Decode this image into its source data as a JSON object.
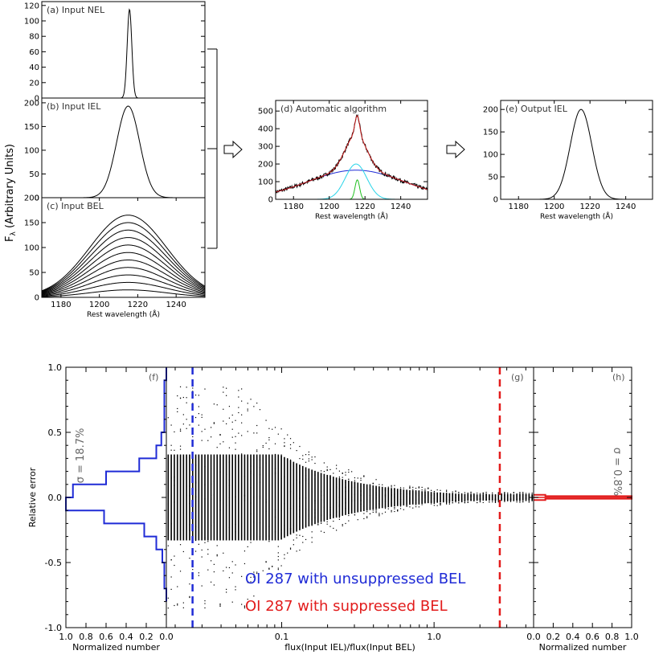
{
  "figure": {
    "ylabel_top": "F",
    "ylabel_sub": "λ",
    "ylabel_rest": " (Arbitrary Units)"
  },
  "chart_data": [
    {
      "id": "a",
      "type": "line",
      "title": "(a) Input NEL",
      "xlim": [
        1170,
        1255
      ],
      "ylim": [
        0,
        125
      ],
      "yticks": [
        0,
        20,
        40,
        60,
        80,
        100,
        120
      ],
      "xticks": [],
      "xlabel": "",
      "ylabel": "",
      "series": [
        {
          "kind": "gauss",
          "center": 1215.7,
          "sigma": 1.2,
          "amp": 115,
          "color": "#000000"
        }
      ]
    },
    {
      "id": "b",
      "type": "line",
      "title": "(b) Input IEL",
      "xlim": [
        1170,
        1255
      ],
      "ylim": [
        0,
        210
      ],
      "yticks": [
        0,
        50,
        100,
        150,
        200
      ],
      "xticks": [],
      "xlabel": "",
      "ylabel": "",
      "series": [
        {
          "kind": "gauss",
          "center": 1215,
          "sigma": 6,
          "amp": 193,
          "color": "#000000"
        }
      ]
    },
    {
      "id": "c",
      "type": "line",
      "title": "(c) Input BEL",
      "xlim": [
        1170,
        1255
      ],
      "ylim": [
        0,
        200
      ],
      "yticks": [
        0,
        50,
        100,
        150,
        200
      ],
      "xticks": [
        1180,
        1200,
        1220,
        1240
      ],
      "xlabel": "Rest wavelength (Å)",
      "ylabel": "",
      "series": [
        {
          "kind": "gaussfamily",
          "center": 1215,
          "sigma": 20,
          "amps": [
            15,
            30,
            45,
            60,
            75,
            90,
            105,
            120,
            135,
            150,
            165
          ],
          "color": "#000000"
        }
      ]
    },
    {
      "id": "d",
      "type": "line",
      "title": "(d) Automatic algorithm",
      "xlim": [
        1170,
        1255
      ],
      "ylim": [
        0,
        560
      ],
      "yticks": [
        0,
        100,
        200,
        300,
        400,
        500
      ],
      "xticks": [
        1180,
        1200,
        1220,
        1240
      ],
      "xlabel": "Rest wavelength (Å)",
      "ylabel": "",
      "series": [
        {
          "kind": "gauss",
          "center": 1215,
          "sigma": 27,
          "amp": 165,
          "color": "#1f2bd6"
        },
        {
          "kind": "gauss",
          "center": 1215,
          "sigma": 6,
          "amp": 200,
          "color": "#27d4e8"
        },
        {
          "kind": "gauss",
          "center": 1215.7,
          "sigma": 1.3,
          "amp": 110,
          "color": "#1fbf1f"
        },
        {
          "kind": "sum",
          "noisy": true,
          "color": "#000000"
        },
        {
          "kind": "sum",
          "noisy": false,
          "color": "#c81e1e"
        }
      ]
    },
    {
      "id": "e",
      "type": "line",
      "title": "(e) Output IEL",
      "xlim": [
        1170,
        1255
      ],
      "ylim": [
        0,
        220
      ],
      "yticks": [
        0,
        50,
        100,
        150,
        200
      ],
      "xticks": [
        1180,
        1200,
        1220,
        1240
      ],
      "xlabel": "Rest wavelength (Å)",
      "ylabel": "",
      "series": [
        {
          "kind": "gauss",
          "center": 1215,
          "sigma": 6,
          "amp": 200,
          "color": "#000000"
        }
      ]
    },
    {
      "id": "f",
      "type": "bar",
      "title": "(f)",
      "xlim": [
        1.0,
        0.0
      ],
      "ylim": [
        -1.0,
        1.0
      ],
      "xticks": [
        1.0,
        0.8,
        0.6,
        0.4,
        0.2,
        0.0
      ],
      "yticks": [
        -1.0,
        -0.5,
        0.0,
        0.5,
        1.0
      ],
      "xlabel": "Normalized number",
      "ylabel": "Relative error",
      "annotation": "σ = 18.7%",
      "bin_width": 0.1,
      "bins": [
        {
          "y0": -0.8,
          "value": 0.0
        },
        {
          "y0": -0.7,
          "value": 0.02
        },
        {
          "y0": -0.6,
          "value": 0.02
        },
        {
          "y0": -0.5,
          "value": 0.04
        },
        {
          "y0": -0.4,
          "value": 0.1
        },
        {
          "y0": -0.3,
          "value": 0.22
        },
        {
          "y0": -0.2,
          "value": 0.62
        },
        {
          "y0": -0.1,
          "value": 1.0
        },
        {
          "y0": 0.0,
          "value": 0.93
        },
        {
          "y0": 0.1,
          "value": 0.6
        },
        {
          "y0": 0.2,
          "value": 0.27
        },
        {
          "y0": 0.3,
          "value": 0.1
        },
        {
          "y0": 0.4,
          "value": 0.05
        },
        {
          "y0": 0.5,
          "value": 0.02
        },
        {
          "y0": 0.6,
          "value": 0.02
        },
        {
          "y0": 0.7,
          "value": 0.02
        },
        {
          "y0": 0.8,
          "value": 0.02
        },
        {
          "y0": 0.9,
          "value": 0.0
        }
      ],
      "color": "#1f2bd6"
    },
    {
      "id": "g",
      "type": "scatter",
      "title": "(g)",
      "xscale": "log",
      "xlim": [
        0.0175,
        4.5
      ],
      "ylim": [
        -1.0,
        1.0
      ],
      "xticks": [
        0.1,
        1.0
      ],
      "yticks": [
        -1.0,
        -0.5,
        0.0,
        0.5,
        1.0
      ],
      "xlabel": "flux(Input IEL)/flux(Input BEL)",
      "ylabel": "",
      "scatter_envelope": {
        "xmin": 0.018,
        "xmax": 4.4,
        "columns": 120,
        "pivot": 0.06,
        "amp_low": 0.85,
        "amp_high": 0.04
      },
      "vlines": [
        {
          "x": 0.026,
          "color": "#1f2bd6",
          "style": "dashed"
        },
        {
          "x": 2.7,
          "color": "#e21c1c",
          "style": "dashed"
        }
      ],
      "legend": [
        {
          "text": "OI 287 with unsuppressed BEL",
          "color": "#1f2bd6"
        },
        {
          "text": "OI 287 with suppressed BEL",
          "color": "#e21c1c"
        }
      ]
    },
    {
      "id": "h",
      "type": "bar",
      "title": "(h)",
      "xlim": [
        0.0,
        1.0
      ],
      "ylim": [
        -1.0,
        1.0
      ],
      "xticks": [
        0.0,
        0.2,
        0.4,
        0.6,
        0.8,
        1.0
      ],
      "yticks": [],
      "xlabel": "Normalized number",
      "ylabel": "",
      "annotation": "σ = 0.8%",
      "bin_width": 0.01,
      "bins": [
        {
          "y0": -0.02,
          "value": 0.12
        },
        {
          "y0": -0.01,
          "value": 1.0
        },
        {
          "y0": 0.0,
          "value": 1.0
        },
        {
          "y0": 0.01,
          "value": 0.12
        }
      ],
      "color": "#e21c1c"
    }
  ]
}
